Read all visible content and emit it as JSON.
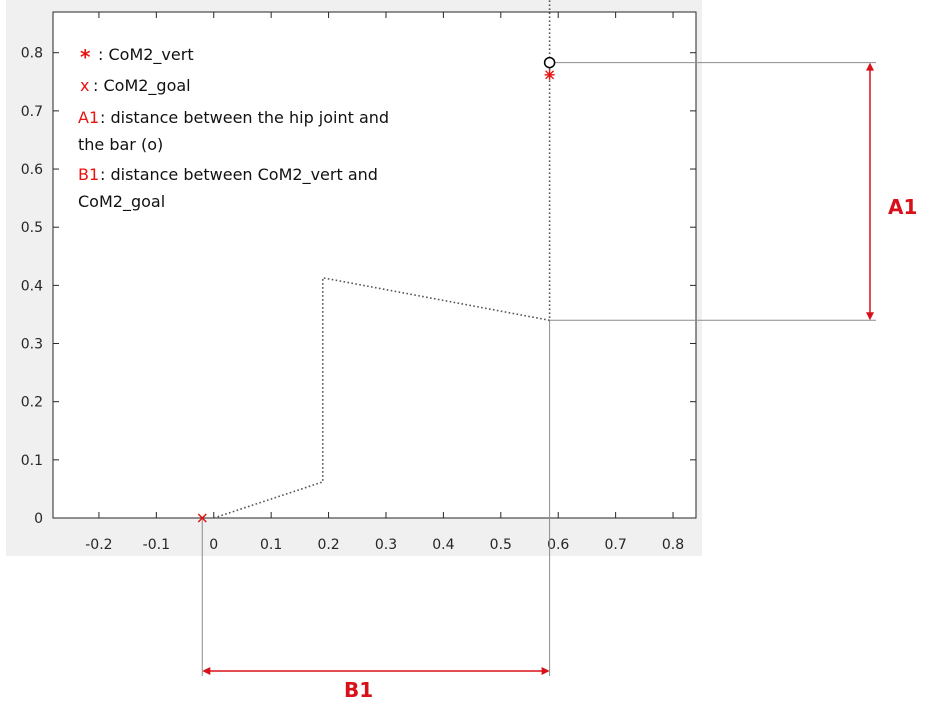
{
  "chart_data": {
    "type": "line",
    "xlim": [
      -0.28,
      0.84
    ],
    "ylim": [
      0,
      0.87
    ],
    "x_ticks": [
      -0.2,
      -0.1,
      0,
      0.1,
      0.2,
      0.3,
      0.4,
      0.5,
      0.6,
      0.7,
      0.8
    ],
    "y_ticks": [
      0,
      0.1,
      0.2,
      0.3,
      0.4,
      0.5,
      0.6,
      0.7,
      0.8
    ],
    "x_tick_labels": [
      "-0.2",
      "-0.1",
      "0",
      "0.1",
      "0.2",
      "0.3",
      "0.4",
      "0.5",
      "0.6",
      "0.7",
      "0.8"
    ],
    "y_tick_labels": [
      "0",
      "0.1",
      "0.2",
      "0.3",
      "0.4",
      "0.5",
      "0.6",
      "0.7",
      "0.8"
    ],
    "grid": false,
    "series": [
      {
        "style": "dotted",
        "color": "#555555",
        "x": [
          0,
          0.19,
          0.19,
          0.585,
          0.585
        ],
        "y": [
          0,
          0.062,
          0.413,
          0.34,
          0.9
        ]
      }
    ],
    "markers": [
      {
        "symbol": "circle",
        "color": "#000000",
        "x": 0.585,
        "y": 0.783
      },
      {
        "symbol": "asterisk",
        "color": "#e8130f",
        "x": 0.585,
        "y": 0.762
      },
      {
        "symbol": "x",
        "color": "#e8130f",
        "x": -0.02,
        "y": 0
      }
    ],
    "legend": {
      "position": "top-left",
      "entries": [
        {
          "key": "*",
          "text": ": CoM2_vert"
        },
        {
          "key": "x",
          "text": ": CoM2_goal"
        },
        {
          "key": "A1",
          "text": ": distance between the hip joint and"
        },
        {
          "key": "",
          "text": "the bar (o)"
        },
        {
          "key": "B1",
          "text": ": distance between CoM2_vert and"
        },
        {
          "key": "",
          "text": "CoM2_goal"
        }
      ]
    },
    "dimensions": [
      {
        "label": "A1",
        "orientation": "vertical",
        "from_y": 0.34,
        "to_y": 0.783
      },
      {
        "label": "B1",
        "orientation": "horizontal",
        "from_x": -0.02,
        "to_x": 0.585
      }
    ]
  },
  "colors": {
    "accent_red": "#e8130f",
    "dimension_red": "#d8101a",
    "axis": "#262626",
    "frame_bg": "#f0f0f0",
    "guide_gray": "#8c8c8c"
  }
}
